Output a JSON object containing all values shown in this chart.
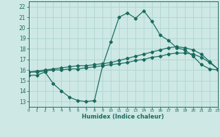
{
  "xlabel": "Humidex (Indice chaleur)",
  "xlim": [
    0,
    23
  ],
  "ylim": [
    12.5,
    22.5
  ],
  "xticks": [
    0,
    1,
    2,
    3,
    4,
    5,
    6,
    7,
    8,
    9,
    10,
    11,
    12,
    13,
    14,
    15,
    16,
    17,
    18,
    19,
    20,
    21,
    22,
    23
  ],
  "yticks": [
    13,
    14,
    15,
    16,
    17,
    18,
    19,
    20,
    21,
    22
  ],
  "background_color": "#cde8e5",
  "grid_color": "#afd4d0",
  "line_color": "#1a6b5e",
  "curve1_x": [
    0,
    1,
    2,
    3,
    4,
    5,
    6,
    7,
    8,
    9,
    10,
    11,
    12,
    13,
    14,
    15,
    16,
    17,
    18,
    19,
    20,
    21,
    22,
    23
  ],
  "curve1_y": [
    15.5,
    15.5,
    15.8,
    14.7,
    14.0,
    13.4,
    13.1,
    13.0,
    13.1,
    16.4,
    18.7,
    21.0,
    21.4,
    20.9,
    21.6,
    20.6,
    19.3,
    18.8,
    18.1,
    17.9,
    17.3,
    16.5,
    16.1,
    16.0
  ],
  "curve2_x": [
    0,
    1,
    2,
    3,
    4,
    5,
    6,
    7,
    8,
    9,
    10,
    11,
    12,
    13,
    14,
    15,
    16,
    17,
    18,
    19,
    20,
    21,
    22,
    23
  ],
  "curve2_y": [
    15.8,
    15.9,
    16.0,
    16.1,
    16.2,
    16.3,
    16.4,
    16.4,
    16.5,
    16.6,
    16.7,
    16.9,
    17.1,
    17.3,
    17.5,
    17.7,
    17.9,
    18.1,
    18.2,
    18.1,
    17.9,
    17.5,
    16.8,
    16.1
  ],
  "curve3_x": [
    0,
    1,
    2,
    3,
    4,
    5,
    6,
    7,
    8,
    9,
    10,
    11,
    12,
    13,
    14,
    15,
    16,
    17,
    18,
    19,
    20,
    21,
    22,
    23
  ],
  "curve3_y": [
    15.8,
    15.8,
    15.9,
    16.0,
    16.0,
    16.1,
    16.1,
    16.2,
    16.3,
    16.4,
    16.5,
    16.6,
    16.7,
    16.9,
    17.0,
    17.2,
    17.3,
    17.5,
    17.6,
    17.6,
    17.5,
    17.2,
    16.7,
    16.1
  ]
}
